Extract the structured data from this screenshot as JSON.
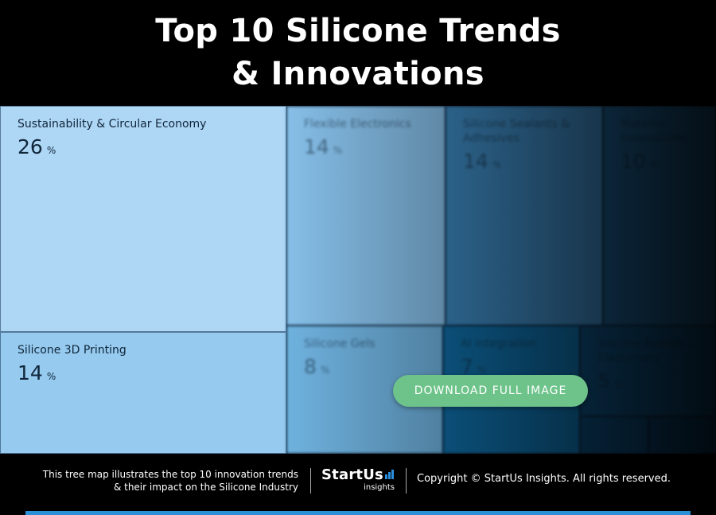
{
  "header": {
    "title_line1": "Top 10 Silicone Trends",
    "title_line2": "& Innovations"
  },
  "chart_data": {
    "type": "treemap",
    "title": "Top 10 Silicone Trends & Innovations",
    "unit": "%",
    "items": [
      {
        "label": "Sustainability & Circular Economy",
        "value": 26,
        "color": "#aed6f5"
      },
      {
        "label": "Silicone 3D Printing",
        "value": 14,
        "color": "#96caef"
      },
      {
        "label": "Flexible Electronics",
        "value": 14,
        "color": "#86bfe8"
      },
      {
        "label": "Silicone Sealants & Adhesives",
        "value": 14,
        "color": "#3d88bf"
      },
      {
        "label": "Material Innovations",
        "value": 10,
        "color": "#1d5f90"
      },
      {
        "label": "Silicone Gels",
        "value": 8,
        "color": "#6fb2df"
      },
      {
        "label": "AI Integration",
        "value": 7,
        "color": "#0f6da6"
      },
      {
        "label": "Silicone Rubber & Elastomers",
        "value": 5,
        "color": "#0e4f7e"
      },
      {
        "label": "",
        "value": null,
        "color": "#0c4a78"
      },
      {
        "label": "",
        "value": null,
        "color": "#0b426d"
      }
    ],
    "item_labels_visible": [
      {
        "name": "Sustainability & Circular Economy",
        "pct": "26"
      },
      {
        "name": "Silicone 3D Printing",
        "pct": "14"
      },
      {
        "name": "Flexible Electronics",
        "pct": "14"
      },
      {
        "name": "Silicone Sealants & Adhesives",
        "pct": "14"
      },
      {
        "name": "Material Innovations",
        "pct": "10"
      },
      {
        "name": "Silicone Gels",
        "pct": "8"
      },
      {
        "name": "AI Integration",
        "pct": "7"
      },
      {
        "name": "Silicone Rubber & Elastomers",
        "pct": "5"
      },
      {
        "name": "",
        "pct": ""
      },
      {
        "name": "",
        "pct": ""
      }
    ],
    "percent_symbol": "%"
  },
  "actions": {
    "download_label": "DOWNLOAD FULL IMAGE"
  },
  "footer": {
    "description_line1": "This tree map illustrates the top 10 innovation trends",
    "description_line2": "& their impact on the Silicone Industry",
    "logo_text": "StartUs",
    "logo_subtext": "insights",
    "copyright": "Copyright © StartUs Insights. All rights reserved."
  },
  "colors": {
    "accent_green": "#6dc38a",
    "accent_blue": "#2a8fd6",
    "background": "#000000"
  }
}
